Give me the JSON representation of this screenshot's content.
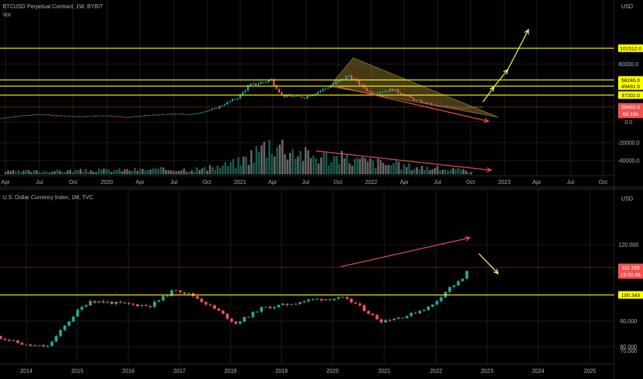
{
  "colors": {
    "background": "#000000",
    "up": "#26a69a",
    "down": "#ef5350",
    "level": "#ffff00",
    "trend": "#ef5350",
    "projection": "#ffff66",
    "grid": "#1e1e1e",
    "text": "#b2b5be"
  },
  "chart_data": [
    {
      "type": "candlestick",
      "title": "BTCUSD Perpetual Contract, 1W, BYBIT",
      "indicator_label": "Vol",
      "currency": "USD",
      "x_tick_labels": [
        "Apr",
        "Jul",
        "Oct",
        "2020",
        "Apr",
        "Jul",
        "Oct",
        "2021",
        "Apr",
        "Jul",
        "Oct",
        "2022",
        "Apr",
        "Jul",
        "Oct",
        "2023",
        "Apr",
        "Jul",
        "Oct"
      ],
      "y_tick_labels": [
        "80000.0",
        "0.0",
        "-20000.0",
        "-40000.0"
      ],
      "price_markers": [
        {
          "label": "101512.0",
          "value": 101512,
          "kind": "level"
        },
        {
          "label": "58246.0",
          "value": 58246,
          "kind": "level"
        },
        {
          "label": "49491.5",
          "value": 49491.5,
          "kind": "level"
        },
        {
          "label": "37202.0",
          "value": 37202,
          "kind": "level"
        },
        {
          "label": "20493.0",
          "value": 20493,
          "kind": "last",
          "countdown": "6d 15h"
        }
      ],
      "price_series": {
        "x": [
          "2019-03",
          "2019-05",
          "2019-07",
          "2019-09",
          "2019-11",
          "2020-01",
          "2020-03",
          "2020-05",
          "2020-07",
          "2020-09",
          "2020-11",
          "2021-01",
          "2021-02",
          "2021-04",
          "2021-05",
          "2021-07",
          "2021-09",
          "2021-11",
          "2022-01",
          "2022-03",
          "2022-05",
          "2022-07",
          "2022-09",
          "2022-11"
        ],
        "close": [
          4000,
          8000,
          10500,
          8500,
          7500,
          9000,
          6500,
          9500,
          11000,
          10800,
          19000,
          34000,
          50000,
          58000,
          36000,
          34000,
          47000,
          64000,
          40000,
          45000,
          30000,
          22000,
          19500,
          20493
        ]
      },
      "volume_trend": "declining",
      "annotations": [
        "falling wedge",
        "declining trendline",
        "declining volume trendline",
        "projected upward breakout arrows"
      ]
    },
    {
      "type": "candlestick",
      "title": "U.S. Dollar Currency Index, 1M, TVC",
      "currency": "USD",
      "x_tick_labels": [
        "2014",
        "2015",
        "2016",
        "2017",
        "2018",
        "2019",
        "2020",
        "2021",
        "2022",
        "2023",
        "2024",
        "2025"
      ],
      "y_tick_labels": [
        "120.000",
        "90.000",
        "80.000",
        "70.000"
      ],
      "price_markers": [
        {
          "label": "111.159",
          "value": 111.159,
          "kind": "last",
          "countdown": "13:31:45"
        },
        {
          "label": "100.343",
          "value": 100.343,
          "kind": "level"
        }
      ],
      "price_series": {
        "x": [
          "2013-06",
          "2014-01",
          "2014-06",
          "2015-01",
          "2015-04",
          "2015-10",
          "2016-06",
          "2016-12",
          "2017-04",
          "2017-10",
          "2018-02",
          "2018-08",
          "2019-02",
          "2019-08",
          "2020-03",
          "2020-06",
          "2020-12",
          "2021-06",
          "2021-12",
          "2022-04",
          "2022-07",
          "2022-09"
        ],
        "close": [
          84,
          80.5,
          80,
          94,
          98,
          97,
          96,
          102.5,
          100,
          94,
          89,
          95,
          96.5,
          98.5,
          99,
          97,
          90,
          92,
          96,
          103,
          106,
          111.159
        ]
      },
      "annotations": [
        "rising trendline",
        "projected downward arrow"
      ]
    }
  ]
}
